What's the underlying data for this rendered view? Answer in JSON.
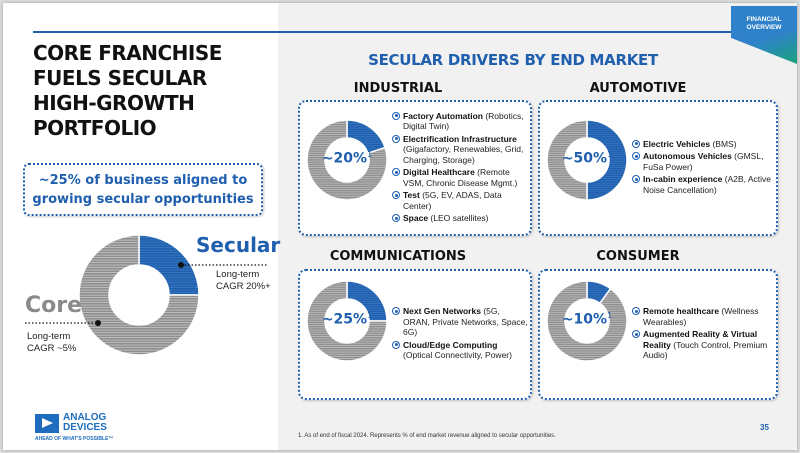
{
  "header": {
    "title_lines": [
      "CORE FRANCHISE",
      "FUELS SECULAR",
      "HIGH-GROWTH",
      "PORTFOLIO"
    ],
    "section_title": "SECULAR DRIVERS BY END MARKET",
    "tag_lines": [
      "FINANCIAL",
      "OVERVIEW"
    ]
  },
  "callout": {
    "lines": [
      "~25% of business aligned to",
      "growing secular opportunities"
    ]
  },
  "colors": {
    "secular": "#1f5fae",
    "core": "#8a8a8a",
    "accent": "#1f5fae"
  },
  "chart_data": [
    {
      "type": "pie",
      "title": "Portfolio mix",
      "categories": [
        "Secular",
        "Core"
      ],
      "values": [
        25,
        75
      ],
      "annotations": {
        "Secular": [
          "Long-term",
          "CAGR 20%+"
        ],
        "Core": [
          "Long-term",
          "CAGR ~5%"
        ]
      }
    },
    {
      "type": "pie",
      "title": "INDUSTRIAL",
      "categories": [
        "Secular",
        "Other"
      ],
      "values": [
        20,
        80
      ],
      "label": "~20%",
      "footnote_marker": "1"
    },
    {
      "type": "pie",
      "title": "AUTOMOTIVE",
      "categories": [
        "Secular",
        "Other"
      ],
      "values": [
        50,
        50
      ],
      "label": "~50%",
      "footnote_marker": "1"
    },
    {
      "type": "pie",
      "title": "COMMUNICATIONS",
      "categories": [
        "Secular",
        "Other"
      ],
      "values": [
        25,
        75
      ],
      "label": "~25%",
      "footnote_marker": "1"
    },
    {
      "type": "pie",
      "title": "CONSUMER",
      "categories": [
        "Secular",
        "Other"
      ],
      "values": [
        10,
        90
      ],
      "label": "~10%",
      "footnote_marker": "1"
    }
  ],
  "markets": [
    {
      "name": "INDUSTRIAL",
      "pct": "~20%",
      "sup": "1",
      "items": [
        {
          "bold": "Factory Automation",
          "rest": " (Robotics, Digital Twin)"
        },
        {
          "bold": "Electrification Infrastructure",
          "rest": " (Gigafactory, Renewables, Grid, Charging, Storage)"
        },
        {
          "bold": "Digital Healthcare",
          "rest": " (Remote VSM, Chronic Disease Mgmt.)"
        },
        {
          "bold": "Test",
          "rest": " (5G, EV, ADAS, Data Center)"
        },
        {
          "bold": "Space",
          "rest": " (LEO satellites)"
        }
      ]
    },
    {
      "name": "AUTOMOTIVE",
      "pct": "~50%",
      "sup": "1",
      "items": [
        {
          "bold": "Electric Vehicles",
          "rest": " (BMS)"
        },
        {
          "bold": "Autonomous Vehicles",
          "rest": " (GMSL, FuSa Power)"
        },
        {
          "bold": "In-cabin experience",
          "rest": " (A2B, Active Noise Cancellation)"
        }
      ]
    },
    {
      "name": "COMMUNICATIONS",
      "pct": "~25%",
      "sup": "1",
      "items": [
        {
          "bold": "Next Gen Networks",
          "rest": " (5G, ORAN, Private Networks, Space, 6G)"
        },
        {
          "bold": "Cloud/Edge Computing",
          "rest": " (Optical Connectivity, Power)"
        }
      ]
    },
    {
      "name": "CONSUMER",
      "pct": "~10%",
      "sup": "1",
      "items": [
        {
          "bold": "Remote healthcare",
          "rest": " (Wellness Wearables)"
        },
        {
          "bold": "Augmented Reality & Virtual Reality",
          "rest": " (Touch Control, Premium Audio)"
        }
      ]
    }
  ],
  "big_labels": {
    "secular": "Secular",
    "secular_sub": [
      "Long-term",
      "CAGR 20%+"
    ],
    "core": "Core",
    "core_sub": [
      "Long-term",
      "CAGR ~5%"
    ]
  },
  "logo": {
    "line1": "ANALOG",
    "line2": "DEVICES",
    "tagline": "AHEAD OF WHAT'S POSSIBLE™"
  },
  "footer": {
    "footnote": "1. As of end of fiscal 2024. Represents % of end market revenue aligned to secular opportunities.",
    "page_number": "35"
  }
}
